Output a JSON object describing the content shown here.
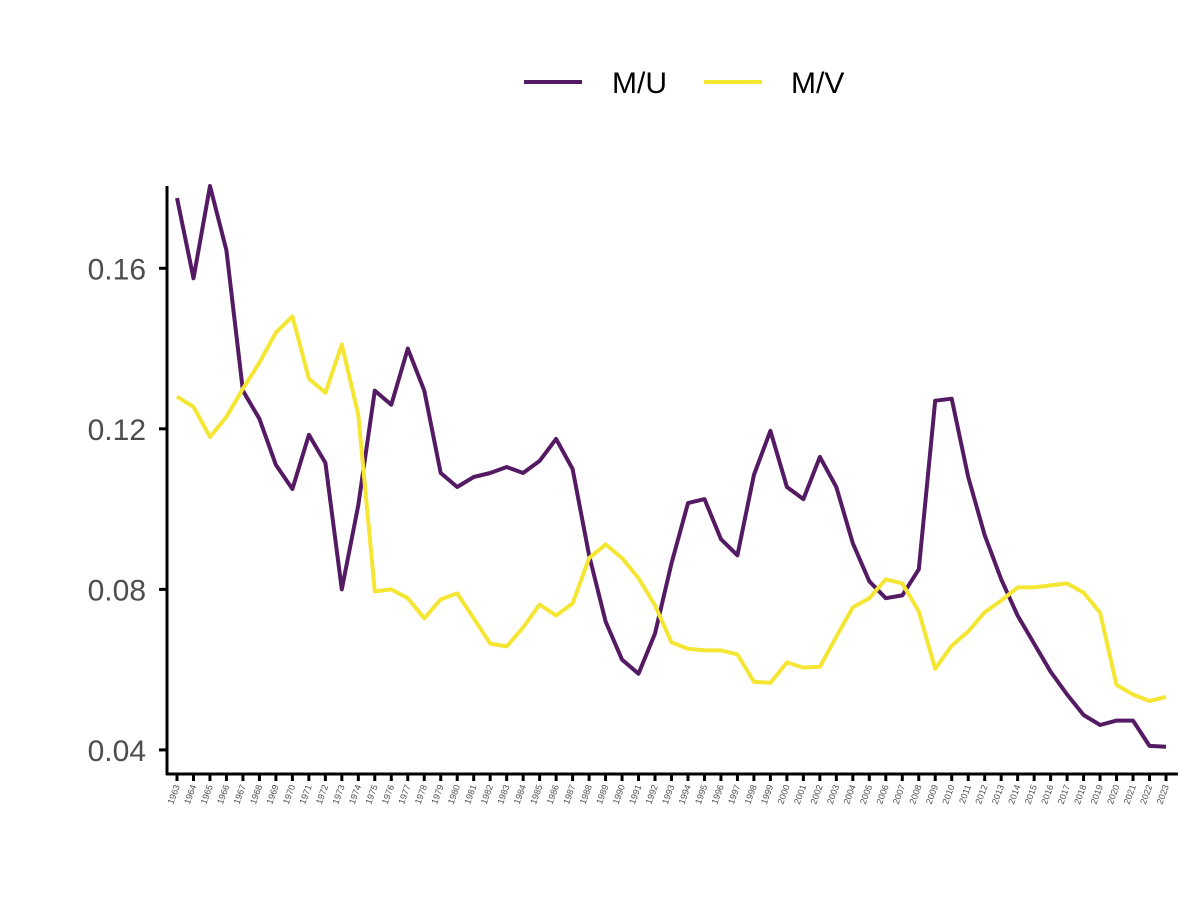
{
  "chart_data": {
    "type": "line",
    "title": "",
    "xlabel": "",
    "ylabel": "",
    "x": [
      "1963",
      "1964",
      "1965",
      "1966",
      "1967",
      "1968",
      "1969",
      "1970",
      "1971",
      "1972",
      "1973",
      "1974",
      "1975",
      "1976",
      "1977",
      "1978",
      "1979",
      "1980",
      "1981",
      "1982",
      "1983",
      "1984",
      "1985",
      "1986",
      "1987",
      "1988",
      "1989",
      "1990",
      "1991",
      "1992",
      "1993",
      "1994",
      "1995",
      "1996",
      "1997",
      "1998",
      "1999",
      "2000",
      "2001",
      "2002",
      "2003",
      "2004",
      "2005",
      "2006",
      "2007",
      "2008",
      "2009",
      "2010",
      "2011",
      "2012",
      "2013",
      "2014",
      "2015",
      "2016",
      "2017",
      "2018",
      "2019",
      "2020",
      "2021",
      "2022",
      "2023"
    ],
    "ylim": [
      0.034,
      0.1805
    ],
    "yticks": [
      "0.04",
      "0.08",
      "0.12",
      "0.16"
    ],
    "legend_position": "top",
    "grid": false,
    "series": [
      {
        "name": "M/U",
        "color": "#541A63",
        "values": [
          0.1775,
          0.1575,
          0.1805,
          0.1645,
          0.1295,
          0.1225,
          0.111,
          0.105,
          0.1185,
          0.1115,
          0.08,
          0.101,
          0.1295,
          0.126,
          0.14,
          0.1295,
          0.109,
          0.1055,
          0.108,
          0.109,
          0.1105,
          0.109,
          0.112,
          0.1175,
          0.11,
          0.0885,
          0.072,
          0.0625,
          0.059,
          0.069,
          0.0865,
          0.1015,
          0.1025,
          0.0925,
          0.0885,
          0.1085,
          0.1195,
          0.1055,
          0.1025,
          0.113,
          0.1055,
          0.0915,
          0.082,
          0.0778,
          0.0785,
          0.085,
          0.127,
          0.1275,
          0.108,
          0.0935,
          0.0825,
          0.0735,
          0.0665,
          0.0595,
          0.0538,
          0.0487,
          0.0462,
          0.0473,
          0.0473,
          0.041,
          0.0408
        ]
      },
      {
        "name": "M/V",
        "color": "#F5E634",
        "values": [
          0.128,
          0.1255,
          0.118,
          0.123,
          0.13,
          0.1365,
          0.144,
          0.148,
          0.1325,
          0.129,
          0.141,
          0.1235,
          0.0795,
          0.08,
          0.0778,
          0.0728,
          0.0775,
          0.079,
          0.0728,
          0.0665,
          0.0658,
          0.0705,
          0.0762,
          0.0735,
          0.0765,
          0.0878,
          0.0912,
          0.0878,
          0.0828,
          0.076,
          0.0668,
          0.0652,
          0.0648,
          0.0648,
          0.0638,
          0.057,
          0.0567,
          0.0618,
          0.0605,
          0.0607,
          0.0682,
          0.0755,
          0.0778,
          0.0825,
          0.0815,
          0.0745,
          0.0602,
          0.066,
          0.0695,
          0.0743,
          0.0772,
          0.0805,
          0.0805,
          0.081,
          0.0815,
          0.0792,
          0.0742,
          0.0562,
          0.0538,
          0.0522,
          0.0532
        ]
      }
    ]
  }
}
